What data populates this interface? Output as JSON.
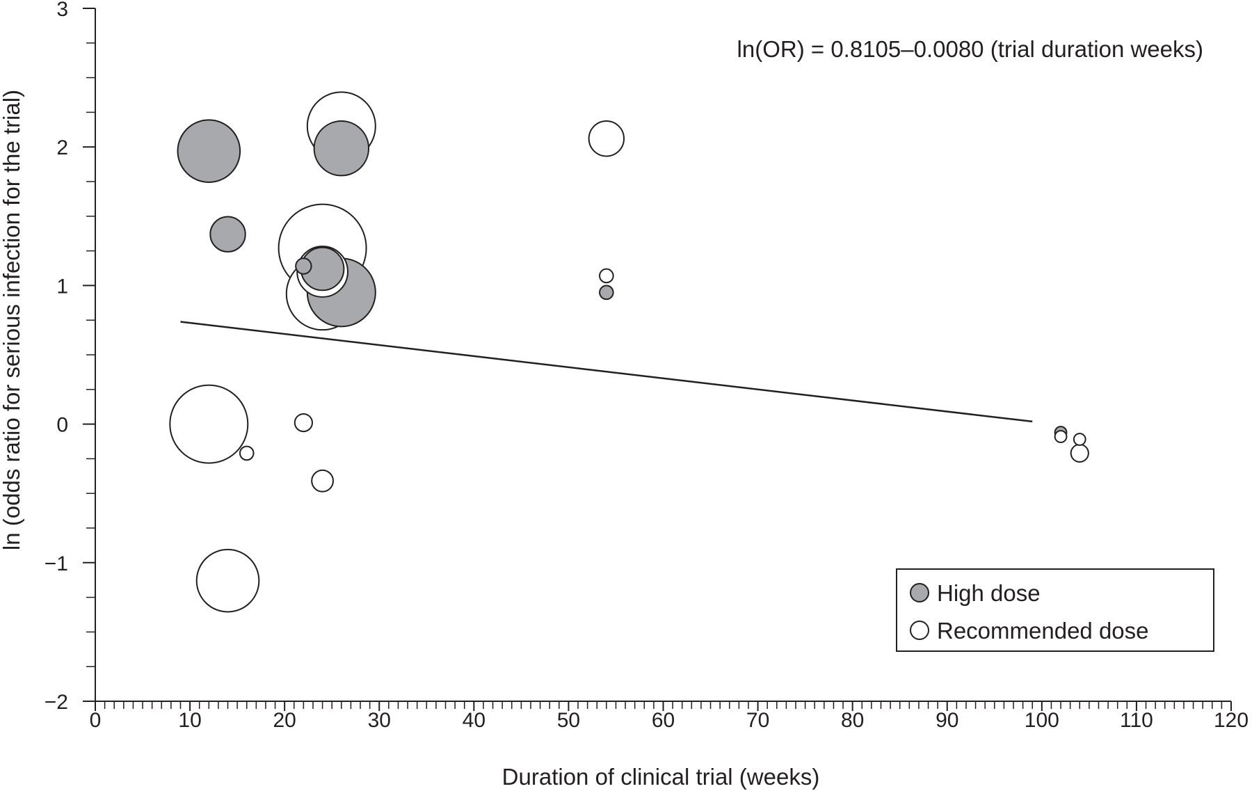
{
  "chart_data": {
    "type": "scatter",
    "title": "",
    "xlabel": "Duration of clinical trial (weeks)",
    "ylabel": "ln (odds ratio for serious infection for the trial)",
    "xlim": [
      0,
      120
    ],
    "ylim": [
      -2,
      3
    ],
    "x_ticks": [
      0,
      10,
      20,
      30,
      40,
      50,
      60,
      70,
      80,
      90,
      100,
      110,
      120
    ],
    "y_ticks": [
      -2,
      -1,
      0,
      1,
      2,
      3
    ],
    "x_tick_labels": [
      "0",
      "10",
      "20",
      "30",
      "40",
      "50",
      "60",
      "70",
      "80",
      "90",
      "100",
      "110",
      "120"
    ],
    "y_tick_labels": [
      "−2",
      "−1",
      "0",
      "1",
      "2",
      "3"
    ],
    "x_minor_step": 1,
    "y_minor_step": 0.25,
    "grid": false,
    "annotation": "ln(OR) = 0.8105–0.0080 (trial duration weeks)",
    "regression_line": {
      "intercept": 0.8105,
      "slope": -0.008,
      "x_range": [
        9,
        99
      ]
    },
    "legend": {
      "position": "bottom-right",
      "entries": [
        "High dose",
        "Recommended dose"
      ]
    },
    "series": [
      {
        "name": "High dose",
        "fill": "#a7a9ac",
        "points": [
          {
            "x": 12,
            "y": 1.97,
            "size": 3.2
          },
          {
            "x": 14,
            "y": 1.37,
            "size": 1.8
          },
          {
            "x": 26,
            "y": 1.99,
            "size": 2.8
          },
          {
            "x": 22,
            "y": 1.14,
            "size": 0.8
          },
          {
            "x": 24,
            "y": 1.12,
            "size": 2.2
          },
          {
            "x": 26,
            "y": 0.95,
            "size": 3.5
          },
          {
            "x": 54,
            "y": 0.95,
            "size": 0.7
          },
          {
            "x": 102,
            "y": -0.06,
            "size": 0.6
          }
        ]
      },
      {
        "name": "Recommended dose",
        "fill": "#ffffff",
        "points": [
          {
            "x": 26,
            "y": 2.15,
            "size": 3.5
          },
          {
            "x": 54,
            "y": 2.06,
            "size": 1.8
          },
          {
            "x": 24,
            "y": 1.27,
            "size": 4.5
          },
          {
            "x": 24,
            "y": 1.1,
            "size": 2.6
          },
          {
            "x": 24,
            "y": 0.94,
            "size": 3.7
          },
          {
            "x": 54,
            "y": 1.07,
            "size": 0.7
          },
          {
            "x": 12,
            "y": 0.0,
            "size": 4.0
          },
          {
            "x": 16,
            "y": -0.21,
            "size": 0.7
          },
          {
            "x": 22,
            "y": 0.01,
            "size": 0.9
          },
          {
            "x": 24,
            "y": -0.41,
            "size": 1.1
          },
          {
            "x": 14,
            "y": -1.13,
            "size": 3.2
          },
          {
            "x": 102,
            "y": -0.09,
            "size": 0.6
          },
          {
            "x": 104,
            "y": -0.11,
            "size": 0.6
          },
          {
            "x": 104,
            "y": -0.21,
            "size": 0.9
          }
        ]
      }
    ]
  }
}
